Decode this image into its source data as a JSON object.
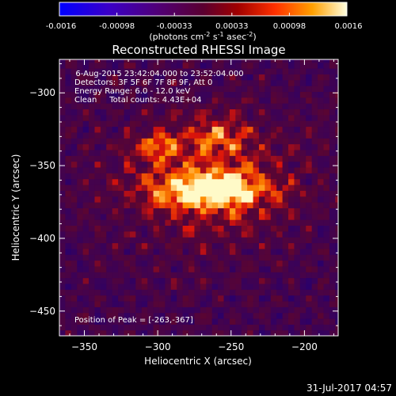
{
  "colorbar": {
    "tick_labels": [
      "-0.0016",
      "-0.00098",
      "-0.00033",
      "0.00033",
      "0.00098",
      "0.0016"
    ],
    "range": [
      -0.0016,
      0.0016
    ],
    "unit_label_pre": "(photons cm",
    "unit_exp1": "-2",
    "unit_mid": " s",
    "unit_exp2": "-1",
    "unit_post": " asec",
    "unit_exp3": "-2",
    "unit_close": ")"
  },
  "chart_data": {
    "type": "heatmap",
    "title": "Reconstructed RHESSI Image",
    "xlabel": "Heliocentric X (arcsec)",
    "ylabel": "Heliocentric Y (arcsec)",
    "xlim": [
      -367,
      -177
    ],
    "ylim": [
      -467,
      -277
    ],
    "x_ticks": [
      -350,
      -300,
      -250,
      -200
    ],
    "y_ticks": [
      -300,
      -350,
      -400,
      -450
    ],
    "x_tick_labels": [
      "−350",
      "−300",
      "−250",
      "−200"
    ],
    "y_tick_labels": [
      "−300",
      "−350",
      "−400",
      "−450"
    ],
    "colormap": "hot",
    "peak_position": [
      -263,
      -367
    ],
    "annotations": [
      "  6-Aug-2015 23:42:04.000 to 23:52:04.000",
      "Detectors: 3F 5F 6F 7F 8F 9F, Att 0",
      "Energy Range: 6.0 - 12.0 keV",
      "Clean     Total counts: 4.43E+04"
    ],
    "peak_label": "Position of Peak = [-263,-367]"
  },
  "footer": {
    "timestamp": "31-Jul-2017 04:57"
  }
}
